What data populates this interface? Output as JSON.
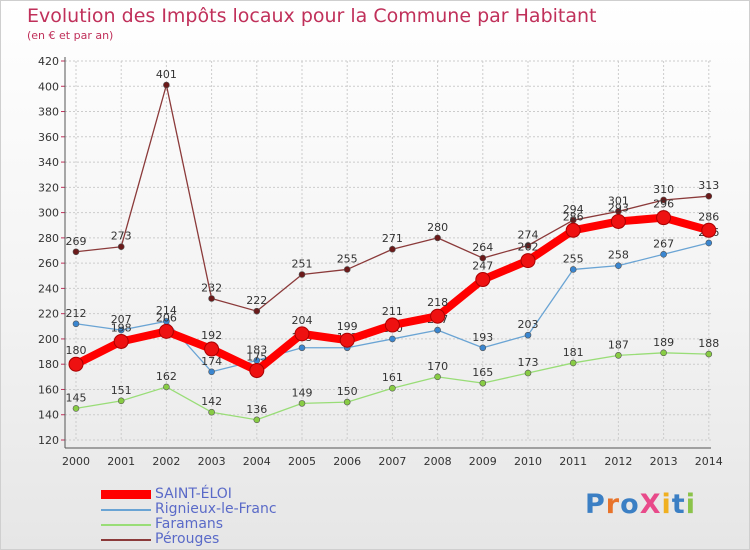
{
  "title": "Evolution des Impôts locaux pour la Commune par Habitant",
  "subtitle": "(en € et par an)",
  "logo_text": "ProXiti",
  "colors": {
    "title": "#c0305a",
    "grid": "#cccccc",
    "axis": "#555555",
    "legend_text": "#5a6ac8"
  },
  "chart_data": {
    "type": "line",
    "title": "Evolution des Impôts locaux pour la Commune par Habitant",
    "subtitle": "(en € et par an)",
    "xlabel": "",
    "ylabel": "",
    "x": [
      "2000",
      "2001",
      "2002",
      "2003",
      "2004",
      "2005",
      "2006",
      "2007",
      "2008",
      "2009",
      "2010",
      "2011",
      "2012",
      "2013",
      "2014"
    ],
    "ylim": [
      120,
      420
    ],
    "yticks": [
      120,
      140,
      160,
      180,
      200,
      220,
      240,
      260,
      280,
      300,
      320,
      340,
      360,
      380,
      400,
      420
    ],
    "grid": true,
    "legend_position": "bottom-left",
    "series": [
      {
        "name": "SAINT-ÉLOI",
        "color": "#ff0000",
        "marker_color": "#ee1111",
        "values": [
          180,
          198,
          206,
          192,
          175,
          204,
          199,
          211,
          218,
          247,
          262,
          286,
          293,
          296,
          286
        ]
      },
      {
        "name": "Rignieux-le-Franc",
        "color": "#6aa4d4",
        "marker_color": "#3a86d0",
        "values": [
          212,
          207,
          214,
          174,
          183,
          193,
          193,
          200,
          207,
          193,
          203,
          255,
          258,
          267,
          276
        ]
      },
      {
        "name": "Faramans",
        "color": "#99dd77",
        "marker_color": "#88cc44",
        "values": [
          145,
          151,
          162,
          142,
          136,
          149,
          150,
          161,
          170,
          165,
          173,
          181,
          187,
          189,
          188
        ]
      },
      {
        "name": "Pérouges",
        "color": "#8b3a3a",
        "marker_color": "#6b1a1a",
        "values": [
          269,
          273,
          401,
          232,
          222,
          251,
          255,
          271,
          280,
          264,
          274,
          294,
          301,
          310,
          313
        ]
      }
    ]
  }
}
